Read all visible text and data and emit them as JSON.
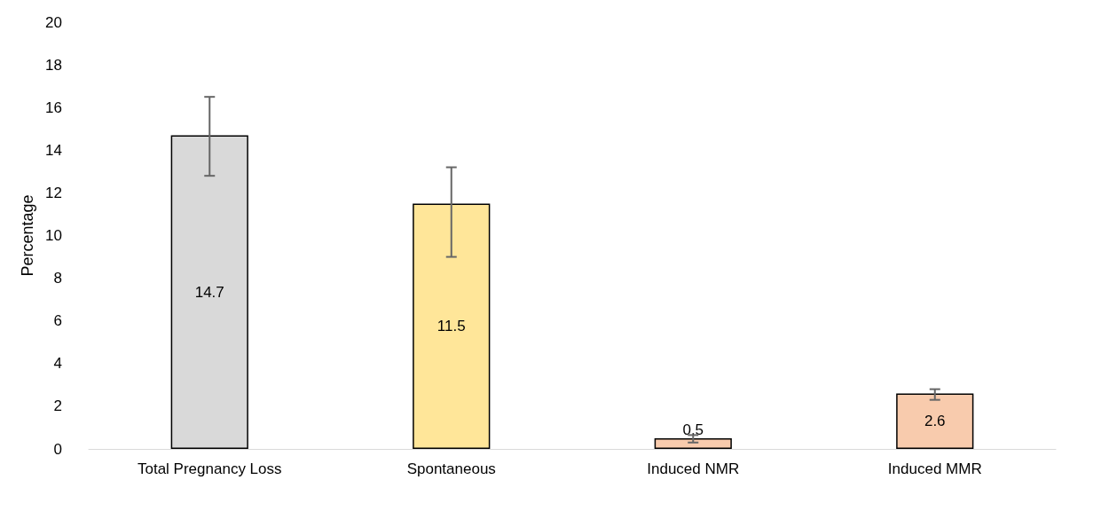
{
  "chart_data": {
    "type": "bar",
    "ylabel": "Percentage",
    "categories": [
      "Total Pregnancy Loss",
      "Spontaneous",
      "Induced NMR",
      "Induced MMR"
    ],
    "values": [
      14.7,
      11.5,
      0.5,
      2.6
    ],
    "colors": [
      "#d9d9d9",
      "#ffe699",
      "#f8cbad",
      "#f8cbad"
    ],
    "errors": [
      [
        12.8,
        16.5
      ],
      [
        9.0,
        13.2
      ],
      [
        0.3,
        0.65
      ],
      [
        2.3,
        2.8
      ]
    ],
    "data_labels": true,
    "ylim": [
      0,
      20
    ],
    "yticks": [
      0,
      2,
      4,
      6,
      8,
      10,
      12,
      14,
      16,
      18,
      20
    ],
    "grid": false
  }
}
